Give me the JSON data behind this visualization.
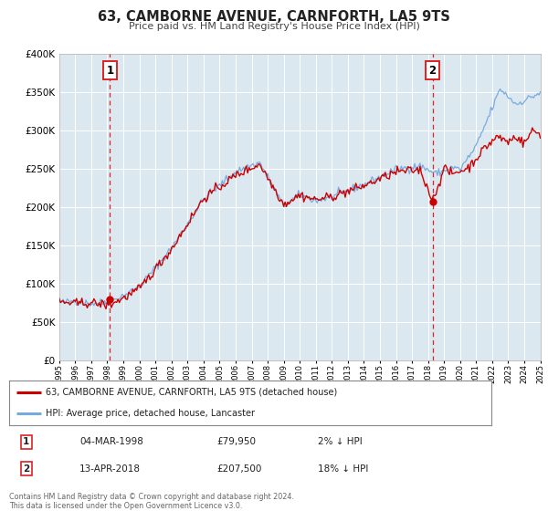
{
  "title": "63, CAMBORNE AVENUE, CARNFORTH, LA5 9TS",
  "subtitle": "Price paid vs. HM Land Registry's House Price Index (HPI)",
  "bg_color": "#ffffff",
  "plot_bg_color": "#dce8f0",
  "grid_color": "#ffffff",
  "sale1_date": 1998.17,
  "sale1_price": 79950,
  "sale1_label": "1",
  "sale2_date": 2018.28,
  "sale2_price": 207500,
  "sale2_label": "2",
  "legend_line1": "63, CAMBORNE AVENUE, CARNFORTH, LA5 9TS (detached house)",
  "legend_line2": "HPI: Average price, detached house, Lancaster",
  "annotation1_date": "04-MAR-1998",
  "annotation1_price": "£79,950",
  "annotation1_hpi": "2% ↓ HPI",
  "annotation2_date": "13-APR-2018",
  "annotation2_price": "£207,500",
  "annotation2_hpi": "18% ↓ HPI",
  "footer_line1": "Contains HM Land Registry data © Crown copyright and database right 2024.",
  "footer_line2": "This data is licensed under the Open Government Licence v3.0.",
  "xmin": 1995,
  "xmax": 2025,
  "ymin": 0,
  "ymax": 400000,
  "house_line_color": "#cc0000",
  "hpi_line_color": "#7aaadd",
  "vline_color": "#dd2222",
  "marker_color": "#cc0000"
}
